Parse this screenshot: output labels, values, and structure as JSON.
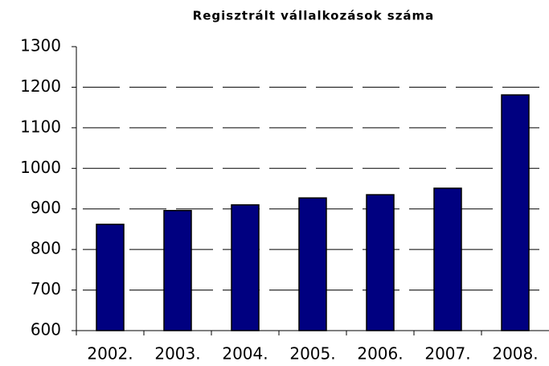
{
  "chart_data": {
    "type": "bar",
    "title": "Regisztrált vállalkozások száma",
    "categories": [
      "2002.",
      "2003.",
      "2004.",
      "2005.",
      "2006.",
      "2007.",
      "2008."
    ],
    "values": [
      862,
      896,
      910,
      927,
      935,
      951,
      1181
    ],
    "color": "#000080",
    "ylim": [
      600,
      1300
    ],
    "yticks": [
      600,
      700,
      800,
      900,
      1000,
      1100,
      1200,
      1300
    ],
    "grid": true
  }
}
